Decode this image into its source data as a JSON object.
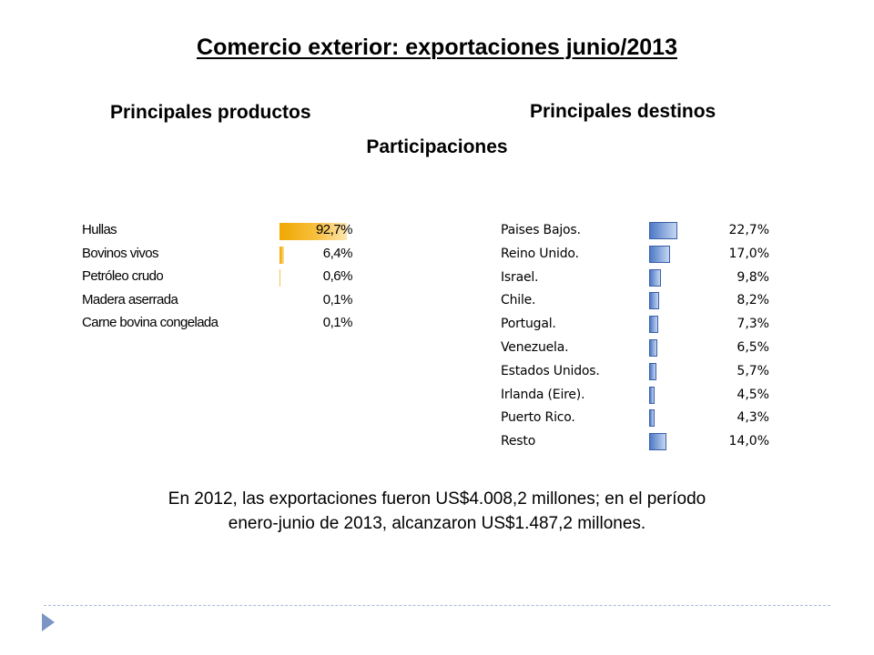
{
  "title": "Comercio exterior: exportaciones junio/2013",
  "headings": {
    "products": "Principales productos",
    "destinations": "Principales destinos",
    "participation": "Participaciones"
  },
  "chart_data": [
    {
      "type": "bar",
      "orientation": "horizontal",
      "title": "Principales productos",
      "unit": "%",
      "categories": [
        "Hullas",
        "Bovinos vivos",
        "Petróleo crudo",
        "Madera aserrada",
        "Carne bovina congelada"
      ],
      "values": [
        92.7,
        6.4,
        0.6,
        0.1,
        0.1
      ],
      "labels": [
        "92,7%",
        "6,4%",
        "0,6%",
        "0,1%",
        "0,1%"
      ],
      "color": "#f5b21c"
    },
    {
      "type": "bar",
      "orientation": "horizontal",
      "title": "Principales destinos",
      "unit": "%",
      "categories": [
        "Paises Bajos.",
        "Reino Unido.",
        "Israel.",
        "Chile.",
        "Portugal.",
        "Venezuela.",
        "Estados Unidos.",
        "Irlanda (Eire).",
        "Puerto Rico.",
        "Resto"
      ],
      "values": [
        22.7,
        17.0,
        9.8,
        8.2,
        7.3,
        6.5,
        5.7,
        4.5,
        4.3,
        14.0
      ],
      "labels": [
        "22,7%",
        "17,0%",
        "9,8%",
        "8,2%",
        "7,3%",
        "6,5%",
        "5,7%",
        "4,5%",
        "4,3%",
        "14,0%"
      ],
      "color": "#4d79c6"
    }
  ],
  "note": {
    "line1": "En 2012, las exportaciones fueron US$4.008,2 millones; en el período",
    "line2": "enero-junio de 2013, alcanzaron US$1.487,2 millones."
  }
}
